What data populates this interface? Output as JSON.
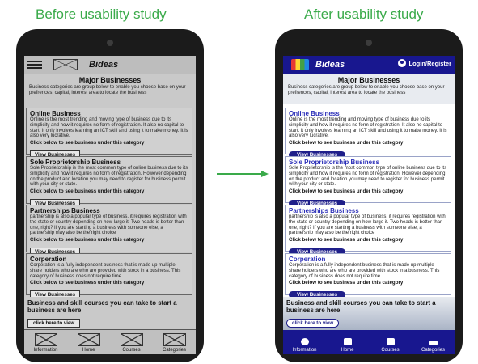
{
  "headings": {
    "before": "Before usability study",
    "after": "After usability study"
  },
  "app": {
    "brand": "Bideas",
    "login": "Login/Register"
  },
  "intro": {
    "title": "Major Businesses",
    "text": "Business categories are group below to enable you choose base on your prefrences, capital, interest area to locate the business"
  },
  "categories": [
    {
      "title": "Online Business",
      "text": "Online is the most trending and moving type of business due to its simplicity and how it requires no form of registration. It also no capital to start. it only involves learning an ICT skill and using it to make money. It is also very lucrative.",
      "see": "Click below to see  business under this category",
      "button": "View Businesses"
    },
    {
      "title": "Sole Proprietorship Business",
      "text": "Sole Proprietorship is the most common type of online business due to its simplicity and how it requires no form of registration. However depending on the product and location you may need to register for business permit with your city or state.",
      "see": "Click below to see  business under this category",
      "button": "View Businesses"
    },
    {
      "title": "Partnerships Business",
      "text": "partnership is also a popular type of business. it requires  registration with the state or country depending on how large it. Two heads is better than one, right? If you are starting a business with someone else, a partnership may also be the right choice",
      "see": "Click below to see  business under this category",
      "button": "View Businesses"
    },
    {
      "title": "Corperation",
      "text": "Corperation is a fully independent business that is made up multiple share holders who are who are provided with stock in a business. This category of business does not require time.",
      "see": "Click below to see  business under this category",
      "button": "View Businesses"
    }
  ],
  "promo": {
    "text": "Business and skill courses you can take to start a business are here",
    "button": "click here  to view"
  },
  "nav": [
    {
      "label": "Information",
      "icon": "info-icon"
    },
    {
      "label": "Home",
      "icon": "home-icon"
    },
    {
      "label": "Courses",
      "icon": "courses-icon"
    },
    {
      "label": "Categories",
      "icon": "categories-icon"
    }
  ],
  "colors": {
    "heading_green": "#3aaa4a",
    "after_navy": "#18178f",
    "after_title_blue": "#2b2fb8",
    "before_gray": "#c9c9c9"
  }
}
